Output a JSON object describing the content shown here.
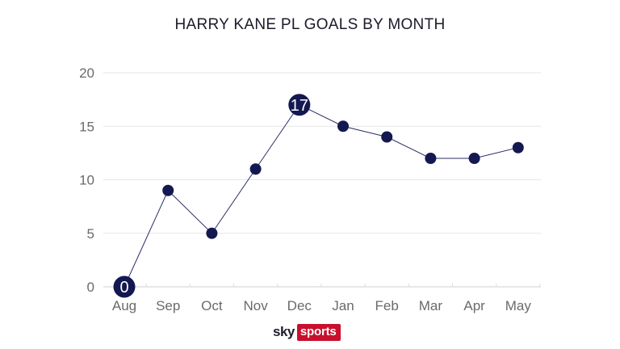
{
  "chart_data": {
    "type": "line",
    "title": "HARRY KANE PL GOALS BY MONTH",
    "xlabel": "",
    "ylabel": "",
    "categories": [
      "Aug",
      "Sep",
      "Oct",
      "Nov",
      "Dec",
      "Jan",
      "Feb",
      "Mar",
      "Apr",
      "May"
    ],
    "series": [
      {
        "values": [
          0,
          9,
          5,
          11,
          17,
          15,
          14,
          12,
          12,
          13
        ]
      }
    ],
    "ylim": [
      0,
      20
    ],
    "yticks": [
      0,
      5,
      10,
      15,
      20
    ],
    "highlighted_labels": [
      {
        "category": "Aug",
        "label": "0"
      },
      {
        "category": "Dec",
        "label": "17"
      }
    ],
    "grid": true,
    "colors": {
      "marker": "#141850",
      "line": "#2b2f66",
      "grid": "#e6e6e6",
      "tick_text": "#6a6a6a"
    }
  },
  "branding": {
    "logo_text_left": "sky",
    "logo_text_right": "sports",
    "logo_accent": "#c8102e"
  }
}
